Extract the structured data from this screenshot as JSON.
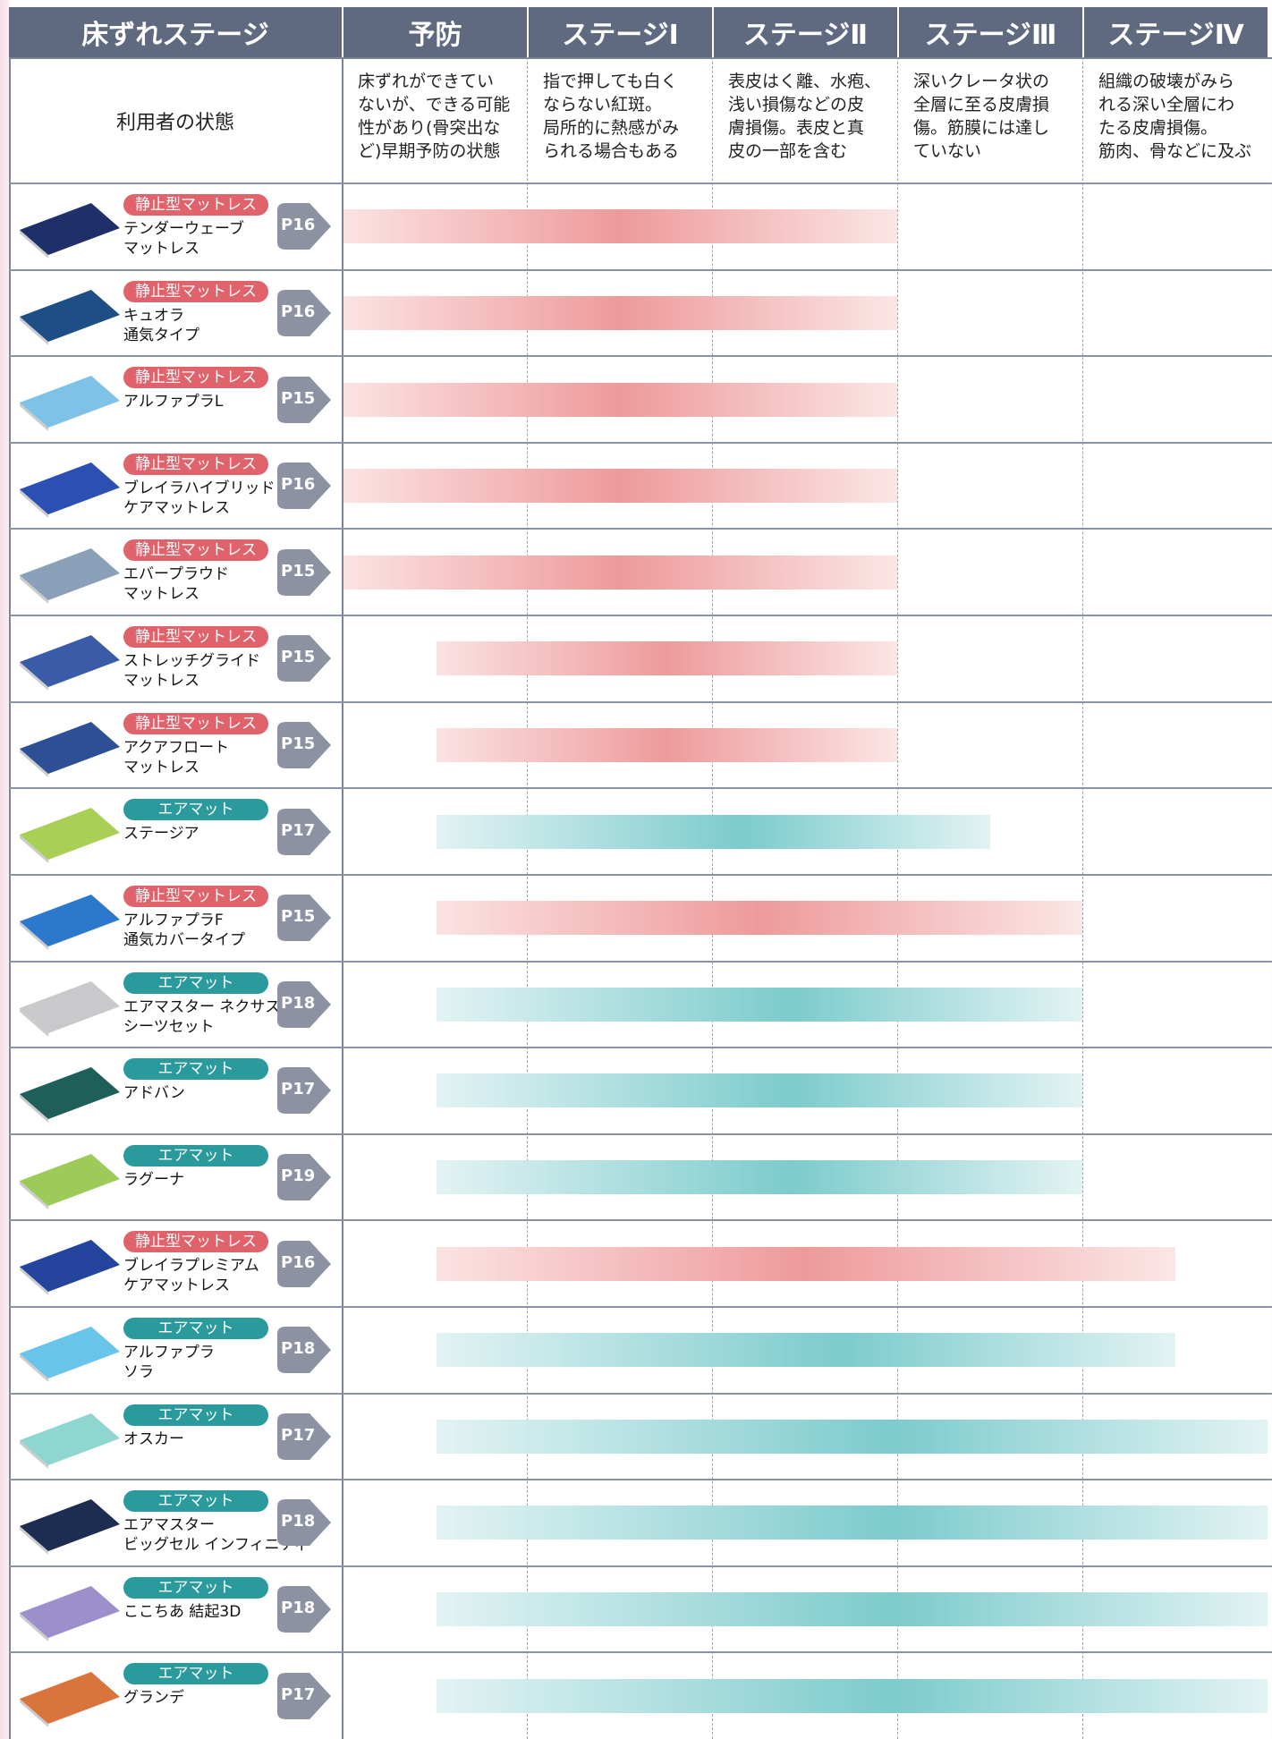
{
  "header": {
    "corner": "床ずれステージ",
    "stages": [
      "予防",
      "ステージⅠ",
      "ステージⅡ",
      "ステージⅢ",
      "ステージⅣ"
    ]
  },
  "condition": {
    "label": "利用者の状態",
    "descriptions": [
      [
        "床ずれができてい",
        "ないが、できる可能",
        "性があり(骨突出な",
        "ど)早期予防の状態"
      ],
      [
        "指で押しても白く",
        "ならない紅斑。",
        "局所的に熱感がみ",
        "られる場合もある"
      ],
      [
        "表皮はく離、水疱、",
        "浅い損傷などの皮",
        "膚損傷。表皮と真",
        "皮の一部を含む"
      ],
      [
        "深いクレータ状の",
        "全層に至る皮膚損",
        "傷。筋膜には達し",
        "ていない"
      ],
      [
        "組織の破壊がみら",
        "れる深い全層にわ",
        "たる皮膚損傷。",
        "筋肉、骨などに及ぶ"
      ]
    ]
  },
  "rows": [
    {
      "tag": "静止型マットレス",
      "kind": "static",
      "name": [
        "テンダーウェーブ",
        "マットレス"
      ],
      "page": "P16",
      "range": [
        0,
        3
      ]
    },
    {
      "tag": "静止型マットレス",
      "kind": "static",
      "name": [
        "キュオラ",
        "通気タイプ"
      ],
      "page": "P16",
      "range": [
        0,
        3
      ]
    },
    {
      "tag": "静止型マットレス",
      "kind": "static",
      "name": [
        "アルファプラL"
      ],
      "page": "P15",
      "range": [
        0,
        3
      ]
    },
    {
      "tag": "静止型マットレス",
      "kind": "static",
      "name": [
        "ブレイラハイブリッド",
        "ケアマットレス"
      ],
      "page": "P16",
      "range": [
        0,
        3
      ]
    },
    {
      "tag": "静止型マットレス",
      "kind": "static",
      "name": [
        "エバープラウド",
        "マットレス"
      ],
      "page": "P15",
      "range": [
        0,
        3
      ]
    },
    {
      "tag": "静止型マットレス",
      "kind": "static",
      "name": [
        "ストレッチグライド",
        "マットレス"
      ],
      "page": "P15",
      "range": [
        0.5,
        3
      ]
    },
    {
      "tag": "静止型マットレス",
      "kind": "static",
      "name": [
        "アクアフロート",
        "マットレス"
      ],
      "page": "P15",
      "range": [
        0.5,
        3
      ]
    },
    {
      "tag": "エアマット",
      "kind": "air",
      "name": [
        "ステージア"
      ],
      "page": "P17",
      "range": [
        0.5,
        3.5
      ]
    },
    {
      "tag": "静止型マットレス",
      "kind": "static",
      "name": [
        "アルファプラF",
        "通気カバータイプ"
      ],
      "page": "P15",
      "range": [
        0.5,
        4
      ]
    },
    {
      "tag": "エアマット",
      "kind": "air",
      "name": [
        "エアマスター ネクサスR",
        "シーツセット"
      ],
      "page": "P18",
      "range": [
        0.5,
        4
      ]
    },
    {
      "tag": "エアマット",
      "kind": "air",
      "name": [
        "アドバン"
      ],
      "page": "P17",
      "range": [
        0.5,
        4
      ]
    },
    {
      "tag": "エアマット",
      "kind": "air",
      "name": [
        "ラグーナ"
      ],
      "page": "P19",
      "range": [
        0.5,
        4
      ]
    },
    {
      "tag": "静止型マットレス",
      "kind": "static",
      "name": [
        "ブレイラプレミアム",
        "ケアマットレス"
      ],
      "page": "P16",
      "range": [
        0.5,
        4.5
      ]
    },
    {
      "tag": "エアマット",
      "kind": "air",
      "name": [
        "アルファプラ",
        "ソラ"
      ],
      "page": "P18",
      "range": [
        0.5,
        4.5
      ]
    },
    {
      "tag": "エアマット",
      "kind": "air",
      "name": [
        "オスカー"
      ],
      "page": "P17",
      "range": [
        0.5,
        5
      ]
    },
    {
      "tag": "エアマット",
      "kind": "air",
      "name": [
        "エアマスター",
        "ビッグセル インフィニティ"
      ],
      "page": "P18",
      "range": [
        0.5,
        5
      ]
    },
    {
      "tag": "エアマット",
      "kind": "air",
      "name": [
        "ここちあ 結起3D"
      ],
      "page": "P18",
      "range": [
        0.5,
        5
      ]
    },
    {
      "tag": "エアマット",
      "kind": "air",
      "name": [
        "グランデ"
      ],
      "page": "P17",
      "range": [
        0.5,
        5
      ]
    }
  ]
}
